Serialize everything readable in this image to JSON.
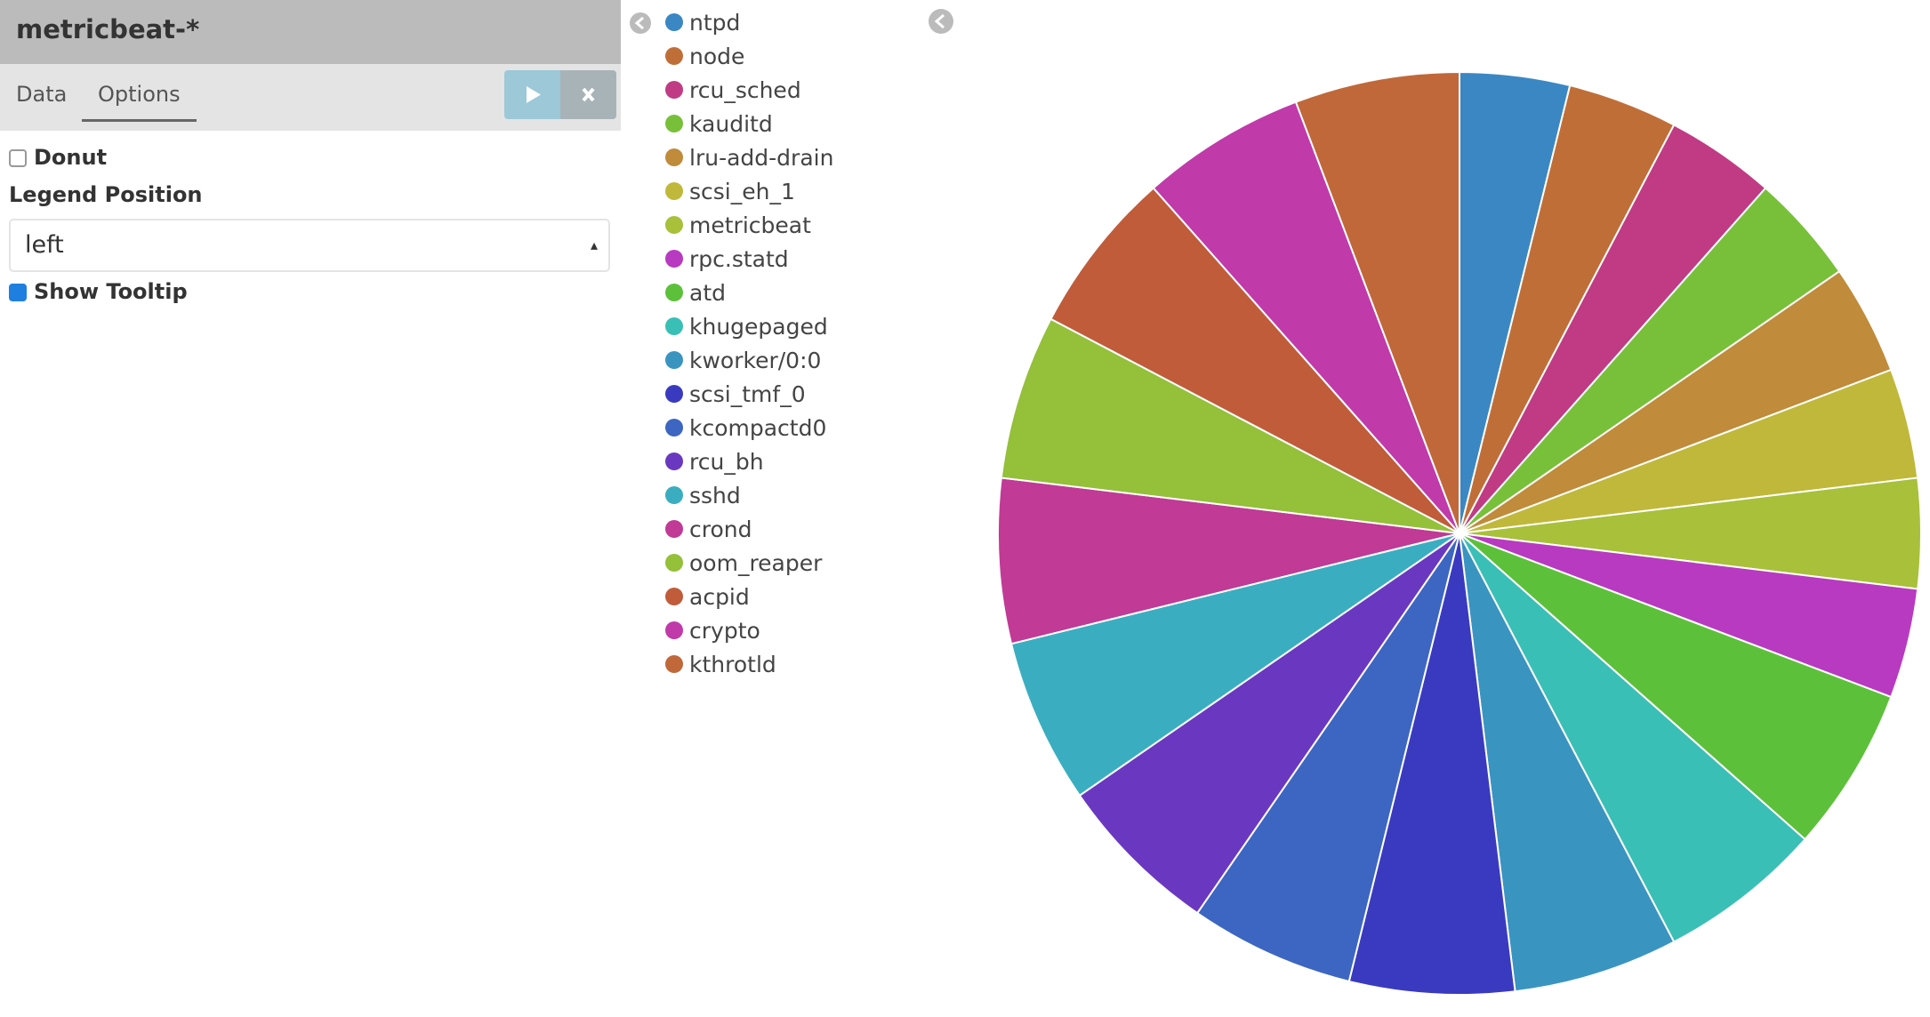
{
  "header": {
    "title": "metricbeat-*"
  },
  "tabs": [
    "Data",
    "Options"
  ],
  "options": {
    "donut_label": "Donut",
    "legend_position_label": "Legend Position",
    "legend_position_value": "left",
    "show_tooltip_label": "Show Tooltip"
  },
  "chart_data": {
    "type": "pie",
    "categories": [
      "ntpd",
      "node",
      "rcu_sched",
      "kauditd",
      "lru-add-drain",
      "scsi_eh_1",
      "metricbeat",
      "rpc.statd",
      "atd",
      "khugepaged",
      "kworker/0:0",
      "scsi_tmf_0",
      "kcompactd0",
      "rcu_bh",
      "sshd",
      "crond",
      "oom_reaper",
      "acpid",
      "crypto",
      "kthrotld"
    ],
    "values": [
      2,
      2,
      2,
      2,
      2,
      2,
      2,
      2,
      3,
      3,
      3,
      3,
      3,
      3,
      3,
      3,
      3,
      3,
      3,
      3
    ],
    "colors": [
      "#3b87c3",
      "#c06e38",
      "#c03b84",
      "#78c03a",
      "#c08b3a",
      "#c0b83a",
      "#a8c03a",
      "#b83ac0",
      "#5dc03a",
      "#3abfb6",
      "#3a94c0",
      "#3a3ac0",
      "#3d66c2",
      "#6a38c0",
      "#3aaec0",
      "#c03a96",
      "#94c03a",
      "#c05c3a",
      "#c03aaa",
      "#c0683a"
    ]
  }
}
